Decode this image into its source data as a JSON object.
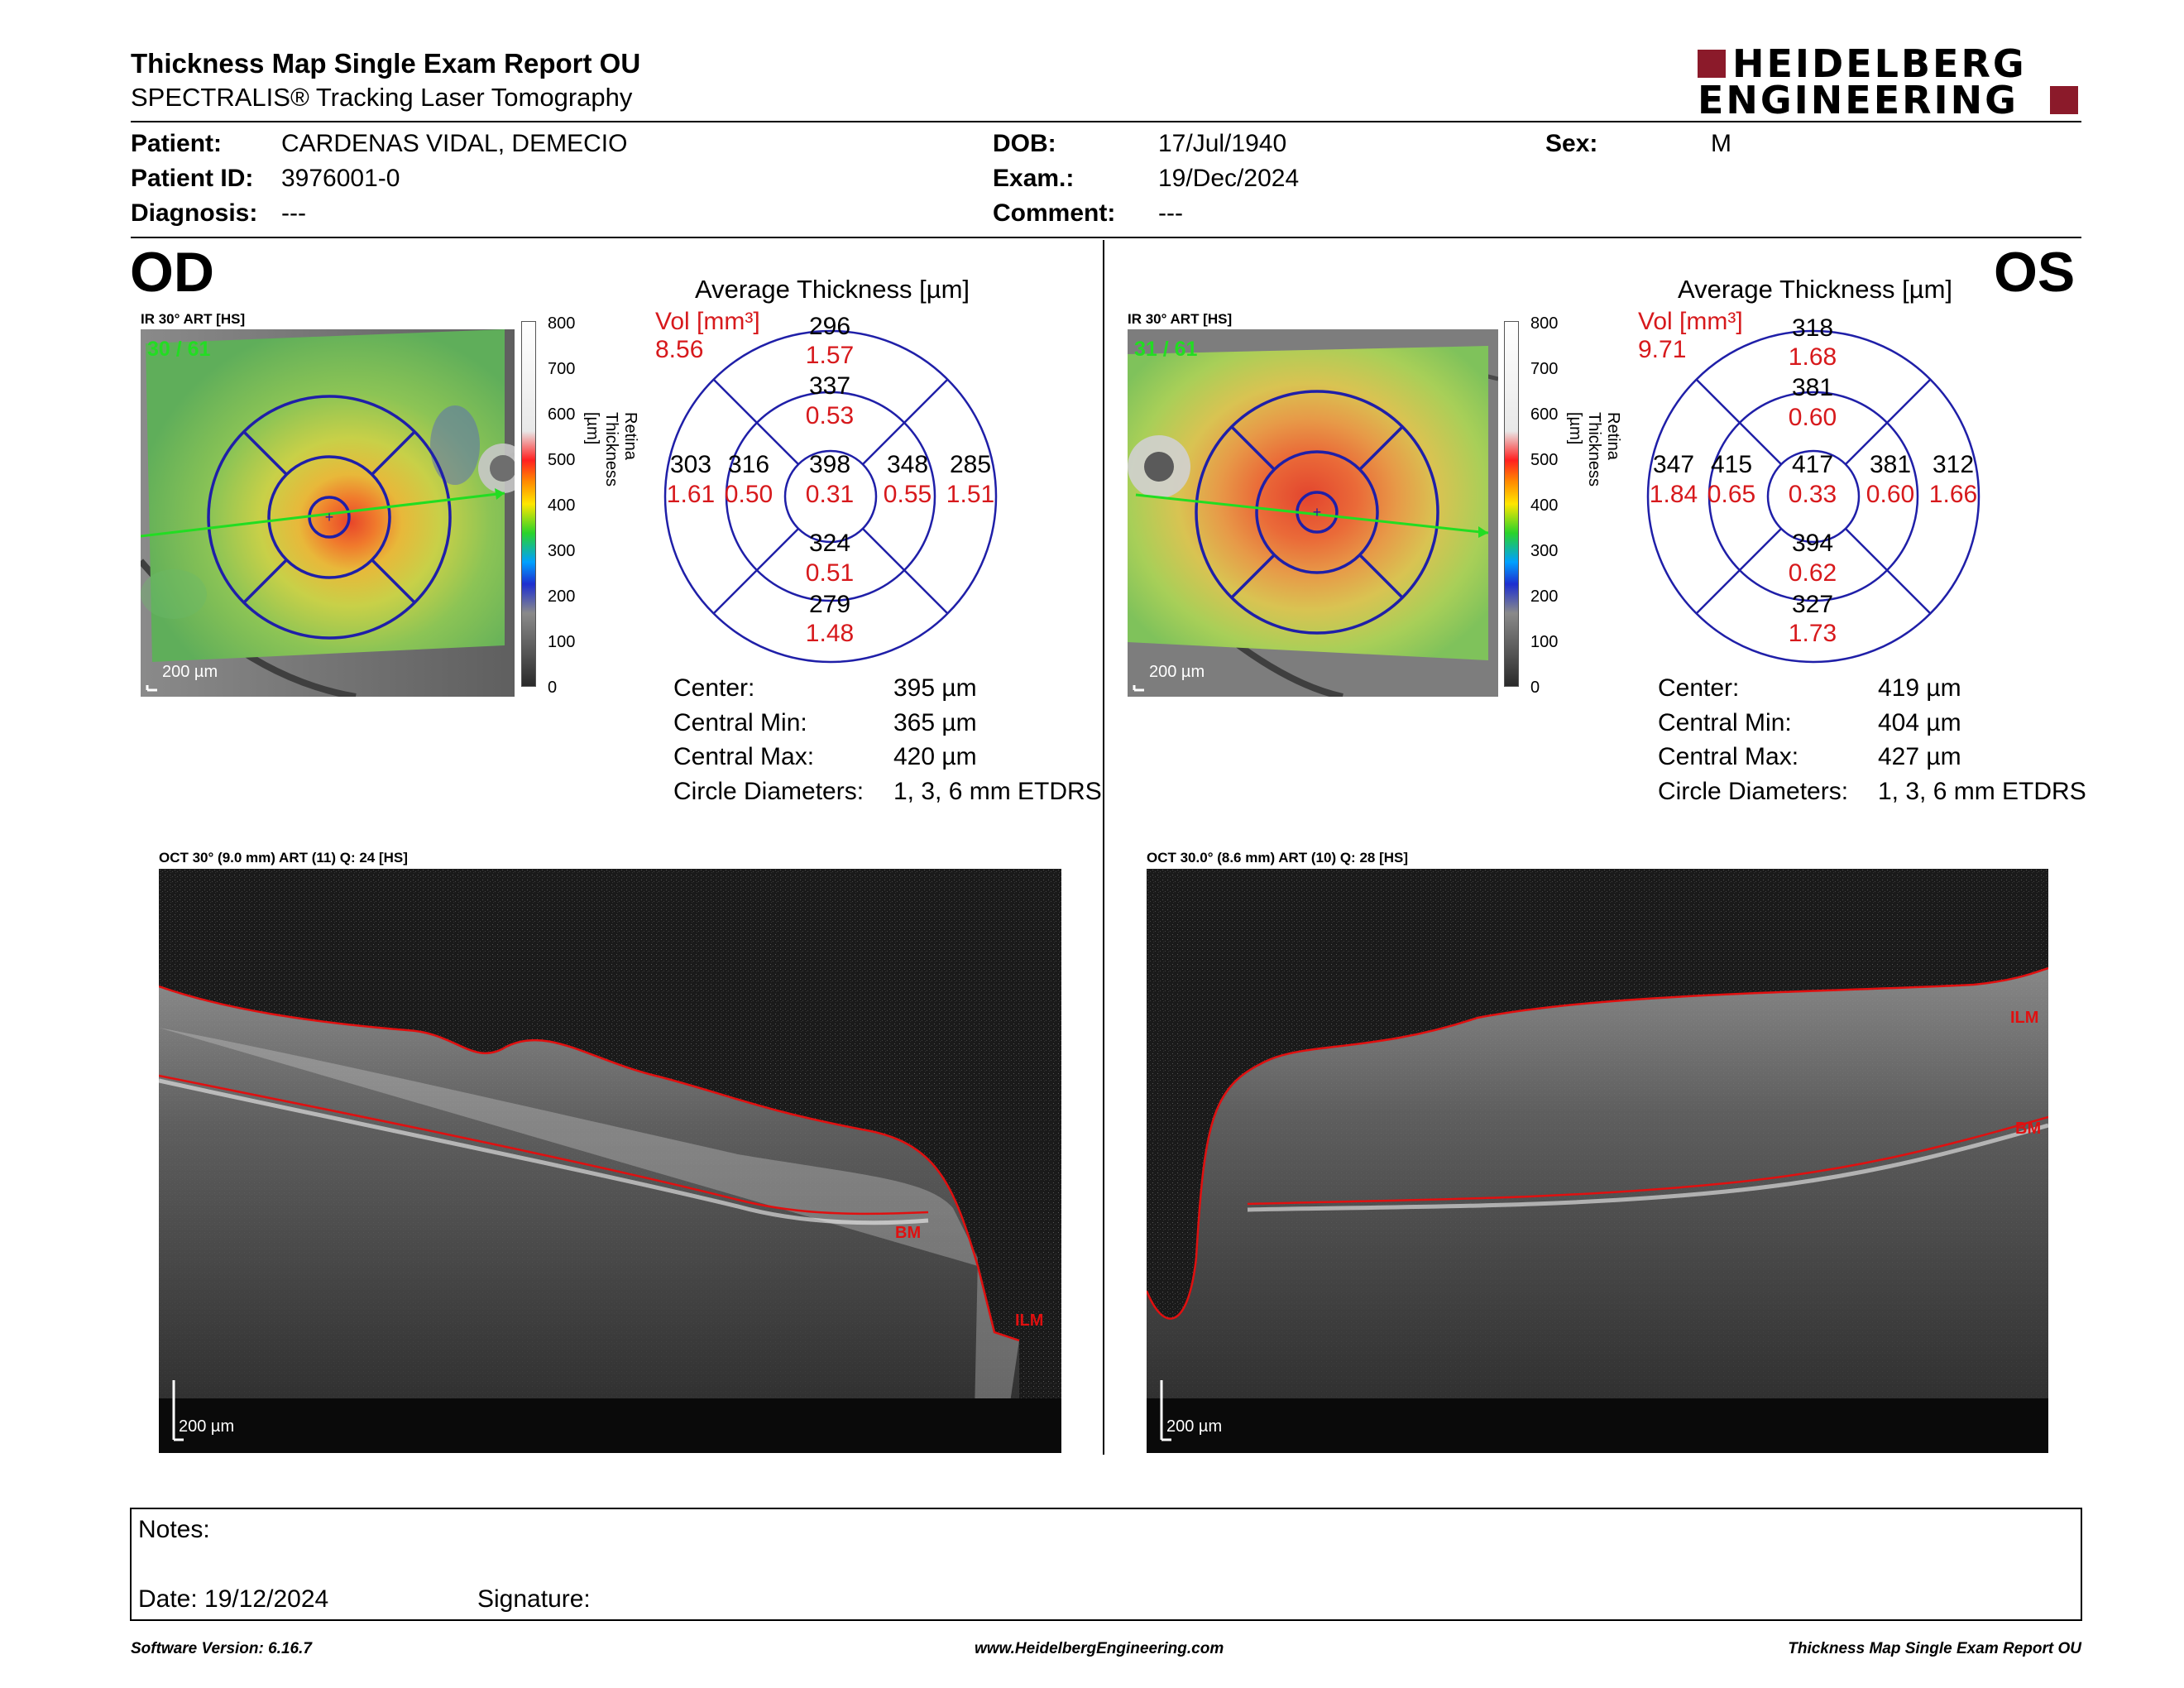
{
  "header": {
    "title": "Thickness Map Single Exam Report OU",
    "subtitle": "SPECTRALIS® Tracking Laser Tomography",
    "logo_line1": "HEIDELBERG",
    "logo_line2": "ENGINEERING",
    "logo_color": "#8b1a2a"
  },
  "patient": {
    "patient_label": "Patient:",
    "patient_value": "CARDENAS VIDAL, DEMECIO",
    "id_label": "Patient ID:",
    "id_value": "3976001-0",
    "diagnosis_label": "Diagnosis:",
    "diagnosis_value": "---",
    "dob_label": "DOB:",
    "dob_value": "17/Jul/1940",
    "exam_label": "Exam.:",
    "exam_value": "19/Dec/2024",
    "comment_label": "Comment:",
    "comment_value": "---",
    "sex_label": "Sex:",
    "sex_value": "M"
  },
  "od": {
    "eye": "OD",
    "ir_caption": "IR 30° ART [HS]",
    "frame": "30 / 61",
    "scale": "200 µm",
    "avg_title": "Average Thickness [µm]",
    "vol_label": "Vol [mm³]",
    "vol_total": "8.56",
    "sectors": {
      "center": {
        "t": "398",
        "v": "0.31"
      },
      "inner_sup": {
        "t": "337",
        "v": "0.53"
      },
      "inner_inf": {
        "t": "324",
        "v": "0.51"
      },
      "inner_left": {
        "t": "316",
        "v": "0.50"
      },
      "inner_right": {
        "t": "348",
        "v": "0.55"
      },
      "outer_sup": {
        "t": "296",
        "v": "1.57"
      },
      "outer_inf": {
        "t": "279",
        "v": "1.48"
      },
      "outer_left": {
        "t": "303",
        "v": "1.61"
      },
      "outer_right": {
        "t": "285",
        "v": "1.51"
      }
    },
    "stats": [
      {
        "label": "Center:",
        "value": "395 µm"
      },
      {
        "label": "Central Min:",
        "value": "365 µm"
      },
      {
        "label": "Central Max:",
        "value": "420 µm"
      },
      {
        "label": "Circle Diameters:",
        "value": "1, 3, 6 mm ETDRS"
      }
    ],
    "oct_caption": "OCT 30° (9.0 mm) ART (11) Q: 24 [HS]",
    "oct_scale": "200 µm",
    "ilm": "ILM",
    "bm": "BM"
  },
  "os": {
    "eye": "OS",
    "ir_caption": "IR 30° ART [HS]",
    "frame": "31 / 61",
    "scale": "200 µm",
    "avg_title": "Average Thickness [µm]",
    "vol_label": "Vol [mm³]",
    "vol_total": "9.71",
    "sectors": {
      "center": {
        "t": "417",
        "v": "0.33"
      },
      "inner_sup": {
        "t": "381",
        "v": "0.60"
      },
      "inner_inf": {
        "t": "394",
        "v": "0.62"
      },
      "inner_left": {
        "t": "415",
        "v": "0.65"
      },
      "inner_right": {
        "t": "381",
        "v": "0.60"
      },
      "outer_sup": {
        "t": "318",
        "v": "1.68"
      },
      "outer_inf": {
        "t": "327",
        "v": "1.73"
      },
      "outer_left": {
        "t": "347",
        "v": "1.84"
      },
      "outer_right": {
        "t": "312",
        "v": "1.66"
      }
    },
    "stats": [
      {
        "label": "Center:",
        "value": "419 µm"
      },
      {
        "label": "Central Min:",
        "value": "404 µm"
      },
      {
        "label": "Central Max:",
        "value": "427 µm"
      },
      {
        "label": "Circle Diameters:",
        "value": "1, 3, 6 mm ETDRS"
      }
    ],
    "oct_caption": "OCT 30.0° (8.6 mm) ART (10) Q: 28 [HS]",
    "oct_scale": "200 µm",
    "ilm": "ILM",
    "bm": "BM"
  },
  "colorbar": {
    "title": "Retina Thickness [µm]",
    "ticks": [
      "800",
      "700",
      "600",
      "500",
      "400",
      "300",
      "200",
      "100",
      "0"
    ]
  },
  "notes": {
    "notes_label": "Notes:",
    "date_label": "Date: 19/12/2024",
    "signature_label": "Signature:"
  },
  "footer": {
    "software": "Software Version: 6.16.7",
    "website": "www.HeidelbergEngineering.com",
    "report": "Thickness Map Single Exam Report OU"
  },
  "colors": {
    "grid_blue": "#1f1fa8",
    "value_red": "#d7191c",
    "segmentation_red": "#e01010",
    "scan_green": "#22dd22"
  }
}
